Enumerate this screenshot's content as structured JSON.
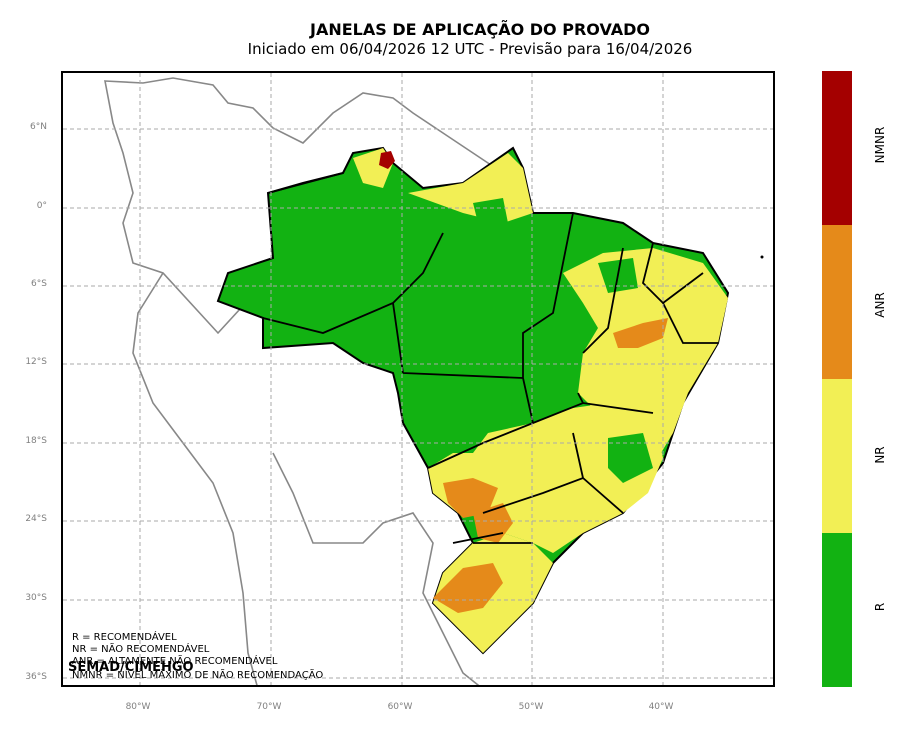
{
  "title": "JANELAS DE APLICAÇÃO DO PROVADO",
  "subtitle": "Iniciado em 06/04/2026 12 UTC - Previsão para 16/04/2026",
  "lat_labels": [
    "6°N",
    "0°",
    "6°S",
    "12°S",
    "18°S",
    "24°S",
    "30°S",
    "36°S"
  ],
  "lon_labels": [
    "80°W",
    "70°W",
    "60°W",
    "50°W",
    "40°W"
  ],
  "legend": {
    "r": "R = RECOMENDÁVEL",
    "nr": "NR = NÃO RECOMENDÁVEL",
    "anr": "ANR = ALTAMENTE NÃO RECOMENDÁVEL",
    "nmnr": "NMNR = NÍVEL MÁXIMO DE NÃO RECOMENDAÇÃO"
  },
  "credit": "SEMAD/CIMEHGO",
  "colorbar": {
    "categories": [
      "NMNR",
      "ANR",
      "NR",
      "R"
    ],
    "colors": {
      "NMNR": "#a40000",
      "ANR": "#e58a1a",
      "NR": "#f2ef55",
      "R": "#12b212"
    }
  }
}
